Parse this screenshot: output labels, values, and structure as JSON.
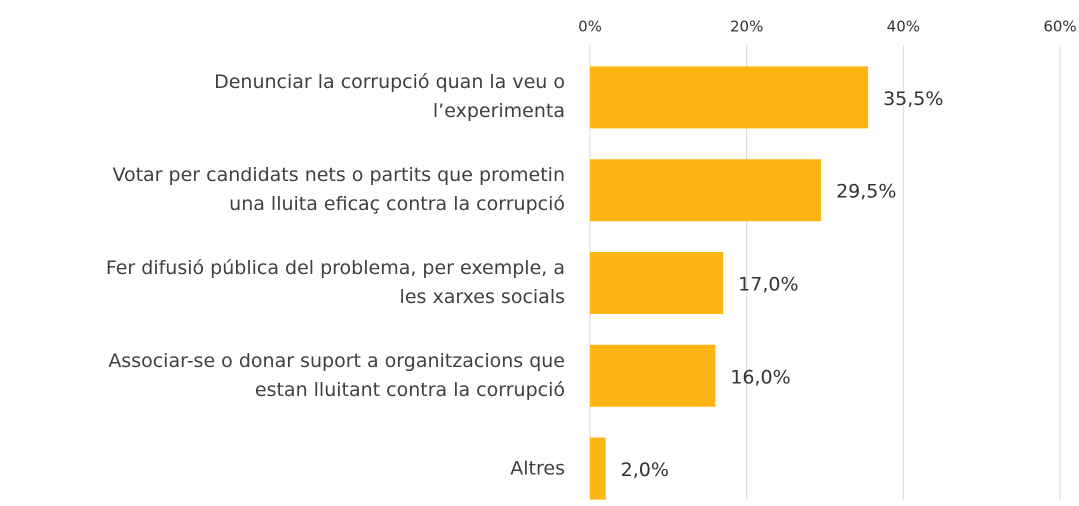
{
  "chart_data": {
    "type": "bar",
    "orientation": "horizontal",
    "categories": [
      "Denunciar la corrupció quan la veu o\nl’experimenta",
      "Votar per candidats nets o partits que prometin\nuna lluita eficaç contra la corrupció",
      "Fer difusió pública del problema, per exemple, a\nles xarxes socials",
      "Associar-se o donar suport a organitzacions que\nestan lluitant contra la corrupció",
      "Altres"
    ],
    "values": [
      35.5,
      29.5,
      17.0,
      16.0,
      2.0
    ],
    "value_labels": [
      "35,5%",
      "29,5%",
      "17,0%",
      "16,0%",
      "2,0%"
    ],
    "color": "#fdb515",
    "xlim": [
      0,
      60
    ],
    "xticks": [
      {
        "value": 0,
        "label": "0%"
      },
      {
        "value": 20,
        "label": "20%"
      },
      {
        "value": 40,
        "label": "40%"
      },
      {
        "value": 60,
        "label": "60%"
      }
    ],
    "grid": true
  }
}
